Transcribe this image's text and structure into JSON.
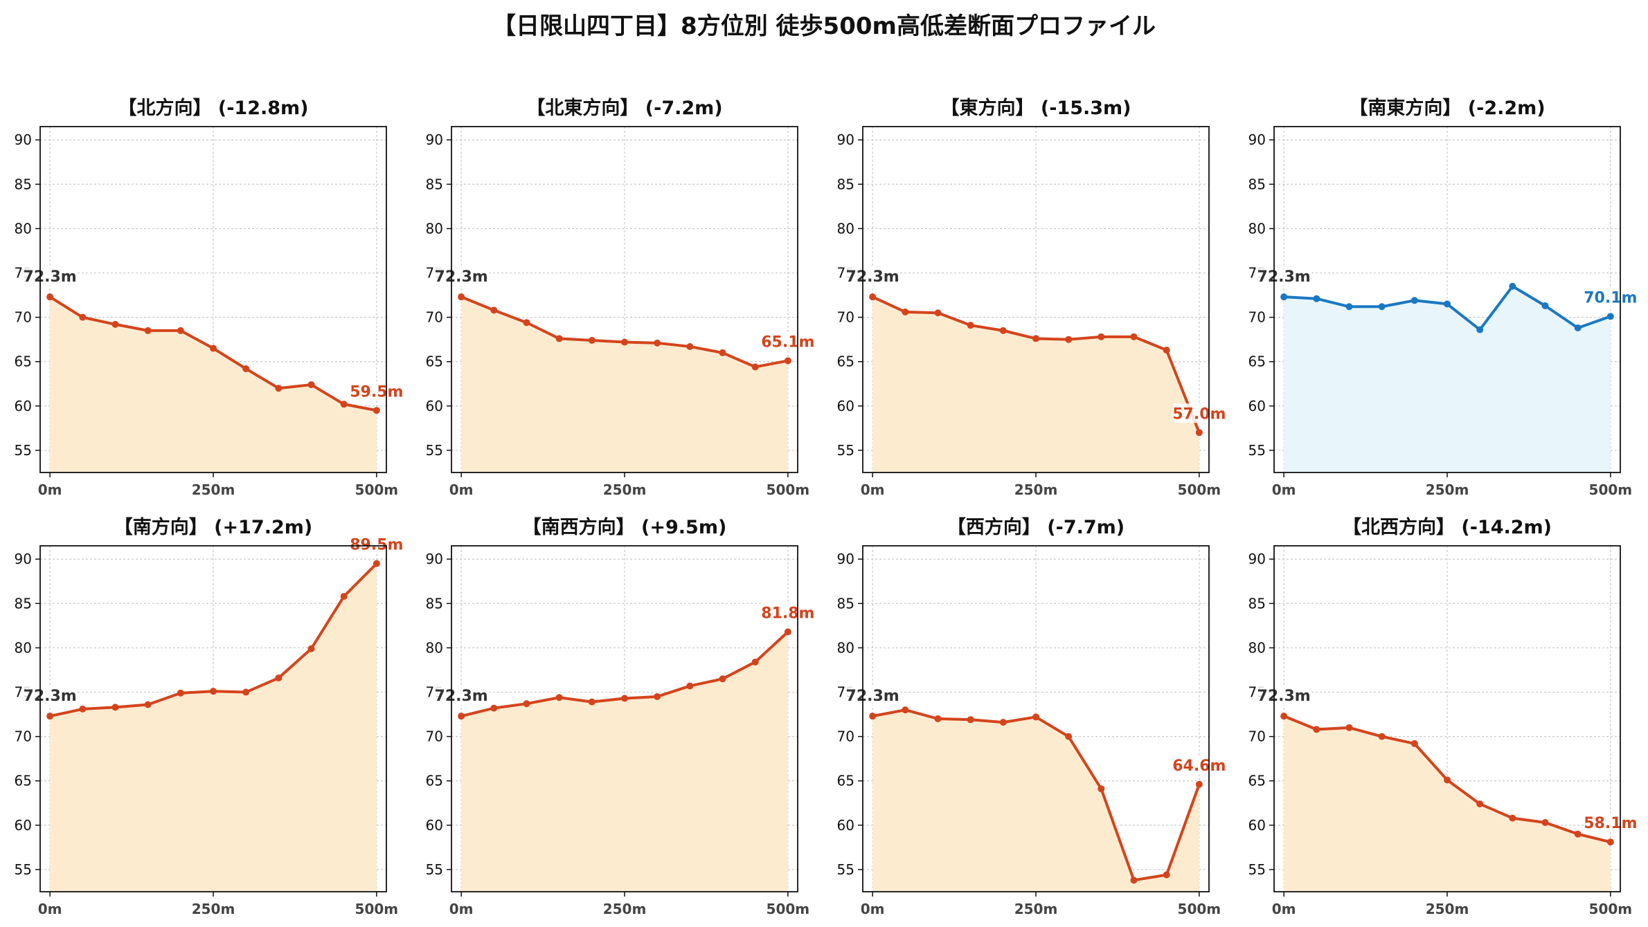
{
  "page_title": "【日限山四丁目】8方位別 徒歩500m高低差断面プロファイル",
  "colors": {
    "descent_line": "#d4441c",
    "descent_fill": "#fdebd0",
    "flat_line": "#1a78c2",
    "flat_fill": "#e8f5fb",
    "axis": "#111111",
    "grid": "#c8c8c8",
    "start_label": "#333333"
  },
  "chart_data": [
    {
      "type": "area",
      "title": "【北方向】 (-12.8m)",
      "color_scheme": "orange",
      "x": [
        0,
        50,
        100,
        150,
        200,
        250,
        300,
        350,
        400,
        450,
        500
      ],
      "y": [
        72.3,
        70.0,
        69.2,
        68.5,
        68.5,
        66.5,
        64.2,
        62.0,
        62.4,
        60.2,
        59.5
      ],
      "start_label": "72.3m",
      "end_label": "59.5m",
      "xticks": [
        "0m",
        "250m",
        "500m"
      ],
      "yticks": [
        55,
        60,
        65,
        70,
        75,
        80,
        85,
        90
      ],
      "ylim": [
        52.5,
        91.5
      ],
      "xlim": [
        -15,
        515
      ],
      "grid": true
    },
    {
      "type": "area",
      "title": "【北東方向】 (-7.2m)",
      "color_scheme": "orange",
      "x": [
        0,
        50,
        100,
        150,
        200,
        250,
        300,
        350,
        400,
        450,
        500
      ],
      "y": [
        72.3,
        70.8,
        69.4,
        67.6,
        67.4,
        67.2,
        67.1,
        66.7,
        66.0,
        64.4,
        65.1
      ],
      "start_label": "72.3m",
      "end_label": "65.1m",
      "xticks": [
        "0m",
        "250m",
        "500m"
      ],
      "yticks": [
        55,
        60,
        65,
        70,
        75,
        80,
        85,
        90
      ],
      "ylim": [
        52.5,
        91.5
      ],
      "xlim": [
        -15,
        515
      ],
      "grid": true
    },
    {
      "type": "area",
      "title": "【東方向】 (-15.3m)",
      "color_scheme": "orange",
      "x": [
        0,
        50,
        100,
        150,
        200,
        250,
        300,
        350,
        400,
        450,
        500
      ],
      "y": [
        72.3,
        70.6,
        70.5,
        69.1,
        68.5,
        67.6,
        67.5,
        67.8,
        67.8,
        66.3,
        57.0
      ],
      "start_label": "72.3m",
      "end_label": "57.0m",
      "xticks": [
        "0m",
        "250m",
        "500m"
      ],
      "yticks": [
        55,
        60,
        65,
        70,
        75,
        80,
        85,
        90
      ],
      "ylim": [
        52.5,
        91.5
      ],
      "xlim": [
        -15,
        515
      ],
      "grid": true
    },
    {
      "type": "area",
      "title": "【南東方向】 (-2.2m)",
      "color_scheme": "blue",
      "x": [
        0,
        50,
        100,
        150,
        200,
        250,
        300,
        350,
        400,
        450,
        500
      ],
      "y": [
        72.3,
        72.1,
        71.2,
        71.2,
        71.9,
        71.5,
        68.6,
        73.5,
        71.3,
        68.8,
        70.1
      ],
      "start_label": "72.3m",
      "end_label": "70.1m",
      "xticks": [
        "0m",
        "250m",
        "500m"
      ],
      "yticks": [
        55,
        60,
        65,
        70,
        75,
        80,
        85,
        90
      ],
      "ylim": [
        52.5,
        91.5
      ],
      "xlim": [
        -15,
        515
      ],
      "grid": true
    },
    {
      "type": "area",
      "title": "【南方向】 (+17.2m)",
      "color_scheme": "orange",
      "x": [
        0,
        50,
        100,
        150,
        200,
        250,
        300,
        350,
        400,
        450,
        500
      ],
      "y": [
        72.3,
        73.1,
        73.3,
        73.6,
        74.9,
        75.1,
        75.0,
        76.6,
        79.9,
        85.8,
        89.5
      ],
      "start_label": "72.3m",
      "end_label": "89.5m",
      "xticks": [
        "0m",
        "250m",
        "500m"
      ],
      "yticks": [
        55,
        60,
        65,
        70,
        75,
        80,
        85,
        90
      ],
      "ylim": [
        52.5,
        91.5
      ],
      "xlim": [
        -15,
        515
      ],
      "grid": true
    },
    {
      "type": "area",
      "title": "【南西方向】 (+9.5m)",
      "color_scheme": "orange",
      "x": [
        0,
        50,
        100,
        150,
        200,
        250,
        300,
        350,
        400,
        450,
        500
      ],
      "y": [
        72.3,
        73.2,
        73.7,
        74.4,
        73.9,
        74.3,
        74.5,
        75.7,
        76.5,
        78.4,
        81.8
      ],
      "start_label": "72.3m",
      "end_label": "81.8m",
      "xticks": [
        "0m",
        "250m",
        "500m"
      ],
      "yticks": [
        55,
        60,
        65,
        70,
        75,
        80,
        85,
        90
      ],
      "ylim": [
        52.5,
        91.5
      ],
      "xlim": [
        -15,
        515
      ],
      "grid": true
    },
    {
      "type": "area",
      "title": "【西方向】 (-7.7m)",
      "color_scheme": "orange",
      "x": [
        0,
        50,
        100,
        150,
        200,
        250,
        300,
        350,
        400,
        450,
        500
      ],
      "y": [
        72.3,
        73.0,
        72.0,
        71.9,
        71.6,
        72.2,
        70.0,
        64.1,
        53.8,
        54.4,
        64.6
      ],
      "start_label": "72.3m",
      "end_label": "64.6m",
      "xticks": [
        "0m",
        "250m",
        "500m"
      ],
      "yticks": [
        55,
        60,
        65,
        70,
        75,
        80,
        85,
        90
      ],
      "ylim": [
        52.5,
        91.5
      ],
      "xlim": [
        -15,
        515
      ],
      "grid": true
    },
    {
      "type": "area",
      "title": "【北西方向】 (-14.2m)",
      "color_scheme": "orange",
      "x": [
        0,
        50,
        100,
        150,
        200,
        250,
        300,
        350,
        400,
        450,
        500
      ],
      "y": [
        72.3,
        70.8,
        71.0,
        70.0,
        69.2,
        65.1,
        62.4,
        60.8,
        60.3,
        59.0,
        58.1
      ],
      "start_label": "72.3m",
      "end_label": "58.1m",
      "xticks": [
        "0m",
        "250m",
        "500m"
      ],
      "yticks": [
        55,
        60,
        65,
        70,
        75,
        80,
        85,
        90
      ],
      "ylim": [
        52.5,
        91.5
      ],
      "xlim": [
        -15,
        515
      ],
      "grid": true
    }
  ]
}
